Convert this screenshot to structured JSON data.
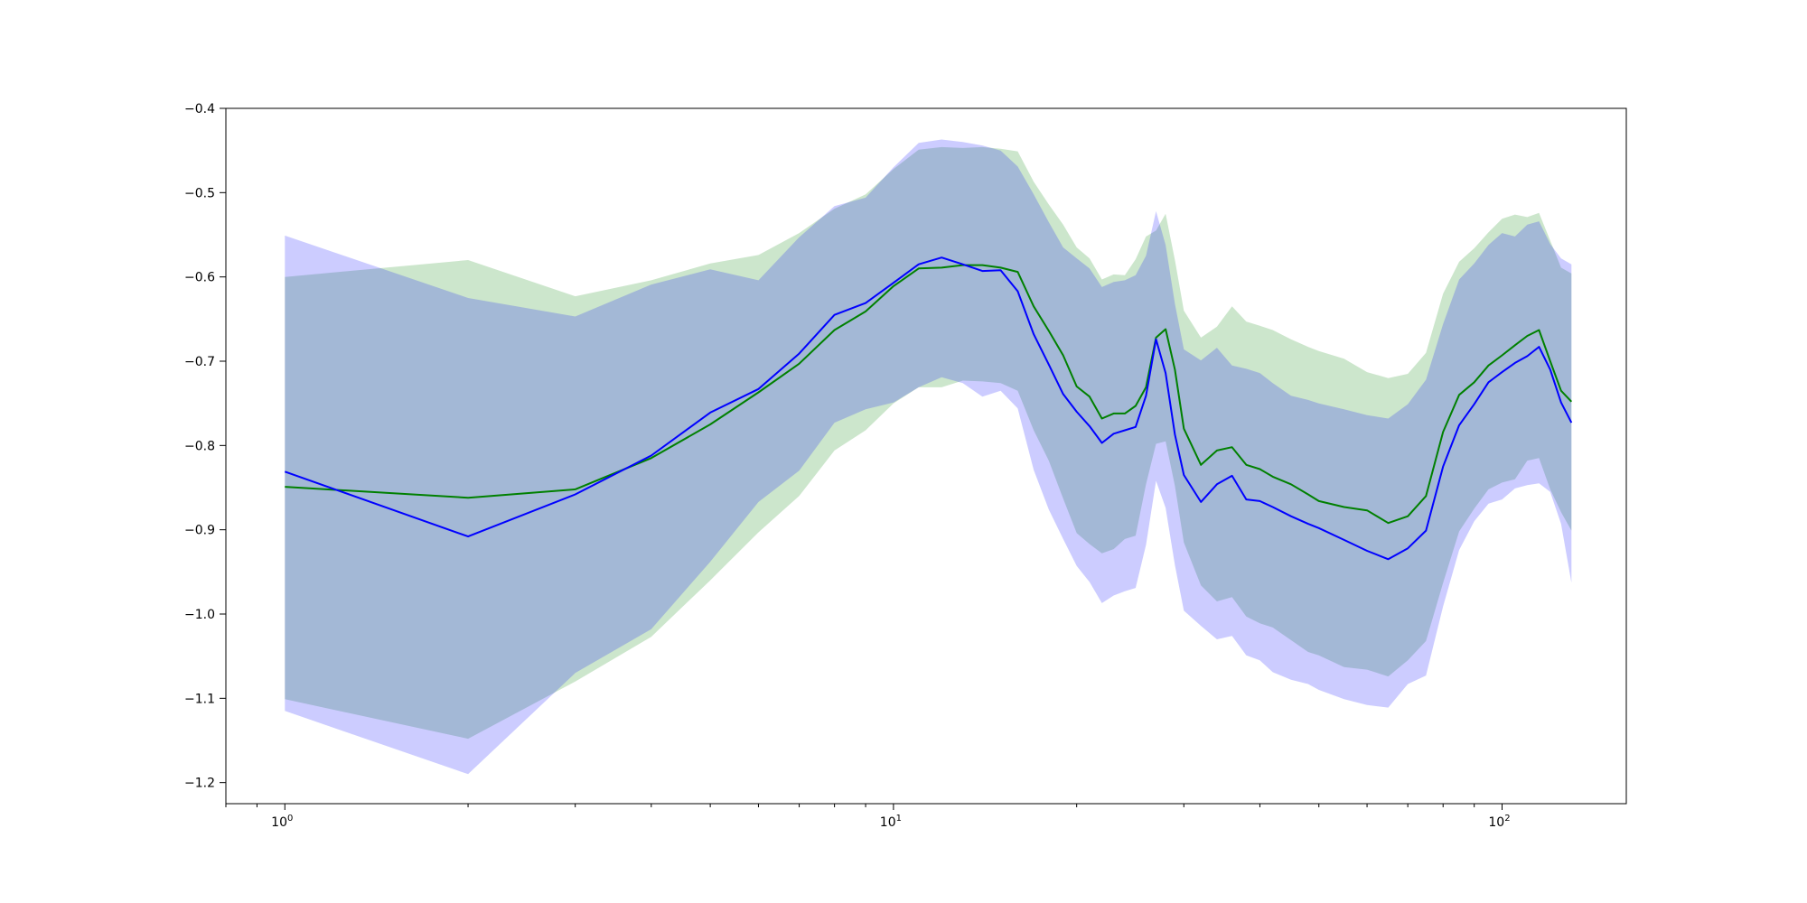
{
  "chart_data": {
    "type": "line",
    "title": "",
    "xlabel": "",
    "ylabel": "",
    "xscale": "log",
    "xlim": [
      0.8,
      160
    ],
    "ylim": [
      -1.225,
      -0.4
    ],
    "grid": false,
    "legend": "none",
    "x_ticks": [
      {
        "base": "10",
        "exp": "0",
        "value": 1
      },
      {
        "base": "10",
        "exp": "1",
        "value": 10
      },
      {
        "base": "10",
        "exp": "2",
        "value": 100
      }
    ],
    "y_ticks": [
      "−0.4",
      "−0.5",
      "−0.6",
      "−0.7",
      "−0.8",
      "−0.9",
      "−1.0",
      "−1.1",
      "−1.2"
    ],
    "y_tick_values": [
      -0.4,
      -0.5,
      -0.6,
      -0.7,
      -0.8,
      -0.9,
      -1.0,
      -1.1,
      -1.2
    ],
    "series": [
      {
        "color": "#008000",
        "band_color": "#008000",
        "band_opacity": 0.2,
        "x": [
          1,
          2,
          3,
          4,
          5,
          6,
          7,
          8,
          9,
          10,
          11,
          12,
          13,
          14,
          15,
          16,
          17,
          18,
          19,
          20,
          21,
          22,
          23,
          24,
          25,
          26,
          27,
          28,
          29,
          30,
          32,
          34,
          36,
          38,
          40,
          42,
          45,
          48,
          50,
          55,
          60,
          65,
          70,
          75,
          80,
          85,
          90,
          95,
          100,
          105,
          110,
          115,
          120,
          125,
          130
        ],
        "y": [
          -0.849,
          -0.862,
          -0.852,
          -0.815,
          -0.775,
          -0.737,
          -0.703,
          -0.663,
          -0.641,
          -0.611,
          -0.59,
          -0.589,
          -0.586,
          -0.586,
          -0.589,
          -0.594,
          -0.635,
          -0.664,
          -0.693,
          -0.73,
          -0.742,
          -0.768,
          -0.762,
          -0.762,
          -0.753,
          -0.731,
          -0.672,
          -0.662,
          -0.71,
          -0.78,
          -0.823,
          -0.806,
          -0.802,
          -0.823,
          -0.828,
          -0.837,
          -0.846,
          -0.858,
          -0.866,
          -0.873,
          -0.877,
          -0.892,
          -0.884,
          -0.86,
          -0.784,
          -0.74,
          -0.725,
          -0.705,
          -0.693,
          -0.681,
          -0.67,
          -0.663,
          -0.7,
          -0.735,
          -0.748
        ],
        "lower": [
          -1.101,
          -1.148,
          -1.08,
          -1.027,
          -0.96,
          -0.903,
          -0.86,
          -0.806,
          -0.782,
          -0.75,
          -0.731,
          -0.731,
          -0.723,
          -0.724,
          -0.726,
          -0.735,
          -0.782,
          -0.818,
          -0.863,
          -0.904,
          -0.917,
          -0.928,
          -0.923,
          -0.911,
          -0.907,
          -0.846,
          -0.798,
          -0.795,
          -0.848,
          -0.915,
          -0.966,
          -0.985,
          -0.98,
          -1.003,
          -1.011,
          -1.016,
          -1.031,
          -1.045,
          -1.049,
          -1.063,
          -1.066,
          -1.074,
          -1.055,
          -1.032,
          -0.963,
          -0.902,
          -0.875,
          -0.852,
          -0.844,
          -0.84,
          -0.818,
          -0.815,
          -0.852,
          -0.879,
          -0.901
        ],
        "upper": [
          -0.6,
          -0.58,
          -0.623,
          -0.604,
          -0.584,
          -0.574,
          -0.548,
          -0.519,
          -0.502,
          -0.472,
          -0.449,
          -0.446,
          -0.447,
          -0.446,
          -0.448,
          -0.451,
          -0.487,
          -0.514,
          -0.538,
          -0.565,
          -0.578,
          -0.603,
          -0.597,
          -0.598,
          -0.579,
          -0.552,
          -0.545,
          -0.525,
          -0.58,
          -0.64,
          -0.672,
          -0.659,
          -0.635,
          -0.653,
          -0.658,
          -0.663,
          -0.674,
          -0.683,
          -0.688,
          -0.697,
          -0.713,
          -0.72,
          -0.715,
          -0.69,
          -0.62,
          -0.582,
          -0.566,
          -0.547,
          -0.531,
          -0.526,
          -0.529,
          -0.524,
          -0.557,
          -0.589,
          -0.596
        ]
      },
      {
        "color": "#0000ff",
        "band_color": "#0000ff",
        "band_opacity": 0.2,
        "x": [
          1,
          2,
          3,
          4,
          5,
          6,
          7,
          8,
          9,
          10,
          11,
          12,
          13,
          14,
          15,
          16,
          17,
          18,
          19,
          20,
          21,
          22,
          23,
          24,
          25,
          26,
          27,
          28,
          29,
          30,
          32,
          34,
          36,
          38,
          40,
          42,
          45,
          48,
          50,
          55,
          60,
          65,
          70,
          75,
          80,
          85,
          90,
          95,
          100,
          105,
          110,
          115,
          120,
          125,
          130
        ],
        "y": [
          -0.831,
          -0.908,
          -0.858,
          -0.812,
          -0.761,
          -0.733,
          -0.691,
          -0.645,
          -0.631,
          -0.607,
          -0.585,
          -0.577,
          -0.585,
          -0.593,
          -0.592,
          -0.617,
          -0.668,
          -0.704,
          -0.739,
          -0.76,
          -0.777,
          -0.797,
          -0.786,
          -0.782,
          -0.778,
          -0.741,
          -0.674,
          -0.714,
          -0.787,
          -0.835,
          -0.867,
          -0.846,
          -0.836,
          -0.864,
          -0.866,
          -0.873,
          -0.884,
          -0.893,
          -0.898,
          -0.912,
          -0.925,
          -0.935,
          -0.922,
          -0.901,
          -0.825,
          -0.776,
          -0.751,
          -0.725,
          -0.713,
          -0.702,
          -0.694,
          -0.683,
          -0.71,
          -0.749,
          -0.773
        ],
        "lower": [
          -1.115,
          -1.19,
          -1.07,
          -1.018,
          -0.938,
          -0.867,
          -0.83,
          -0.773,
          -0.757,
          -0.749,
          -0.731,
          -0.719,
          -0.726,
          -0.742,
          -0.735,
          -0.756,
          -0.829,
          -0.876,
          -0.911,
          -0.943,
          -0.962,
          -0.987,
          -0.978,
          -0.973,
          -0.969,
          -0.918,
          -0.842,
          -0.874,
          -0.942,
          -0.996,
          -1.014,
          -1.03,
          -1.026,
          -1.049,
          -1.055,
          -1.069,
          -1.078,
          -1.083,
          -1.09,
          -1.101,
          -1.108,
          -1.111,
          -1.083,
          -1.073,
          -0.991,
          -0.924,
          -0.89,
          -0.869,
          -0.864,
          -0.851,
          -0.847,
          -0.845,
          -0.855,
          -0.893,
          -0.963
        ],
        "upper": [
          -0.551,
          -0.625,
          -0.647,
          -0.609,
          -0.591,
          -0.604,
          -0.553,
          -0.516,
          -0.506,
          -0.47,
          -0.441,
          -0.437,
          -0.44,
          -0.444,
          -0.45,
          -0.469,
          -0.502,
          -0.535,
          -0.565,
          -0.578,
          -0.59,
          -0.612,
          -0.606,
          -0.604,
          -0.598,
          -0.575,
          -0.522,
          -0.562,
          -0.632,
          -0.686,
          -0.699,
          -0.684,
          -0.705,
          -0.709,
          -0.714,
          -0.726,
          -0.741,
          -0.746,
          -0.75,
          -0.757,
          -0.764,
          -0.768,
          -0.751,
          -0.722,
          -0.656,
          -0.603,
          -0.584,
          -0.562,
          -0.548,
          -0.552,
          -0.538,
          -0.534,
          -0.561,
          -0.578,
          -0.585
        ]
      }
    ]
  }
}
